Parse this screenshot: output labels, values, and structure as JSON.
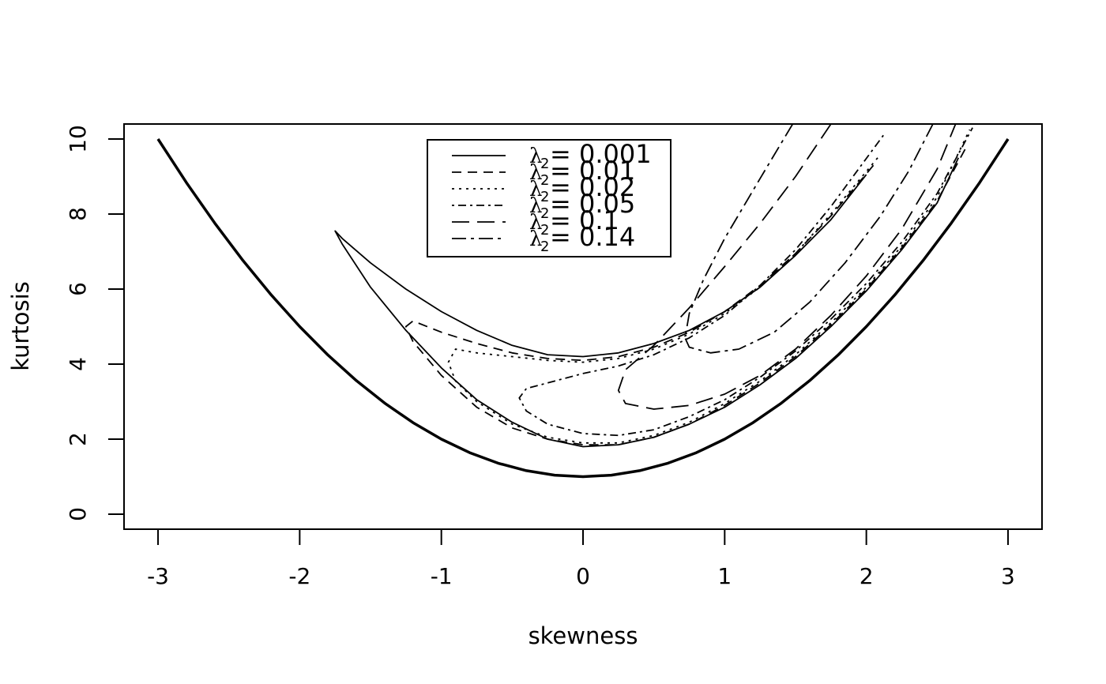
{
  "chart_data": {
    "type": "line",
    "title": "",
    "xlabel": "skewness",
    "ylabel": "kurtosis",
    "xlim": [
      -3.24,
      3.24
    ],
    "ylim": [
      -0.4,
      10.4
    ],
    "x_ticks": [
      -3,
      -2,
      -1,
      0,
      1,
      2,
      3
    ],
    "y_ticks": [
      0,
      2,
      4,
      6,
      8,
      10
    ],
    "x_tick_labels": [
      "-3",
      "-2",
      "-1",
      "0",
      "1",
      "2",
      "3"
    ],
    "y_tick_labels": [
      "0",
      "2",
      "4",
      "6",
      "8",
      "10"
    ],
    "grid": false,
    "legend_placement": "top-center",
    "boundary": {
      "x": [
        -3,
        -2.8,
        -2.6,
        -2.4,
        -2.2,
        -2,
        -1.8,
        -1.6,
        -1.4,
        -1.2,
        -1,
        -0.8,
        -0.6,
        -0.4,
        -0.2,
        0,
        0.2,
        0.4,
        0.6,
        0.8,
        1,
        1.2,
        1.4,
        1.6,
        1.8,
        2,
        2.2,
        2.4,
        2.6,
        2.8,
        3
      ],
      "y": [
        10,
        8.84,
        7.76,
        6.76,
        5.84,
        5,
        4.24,
        3.56,
        2.96,
        2.44,
        2,
        1.64,
        1.36,
        1.16,
        1.04,
        1,
        1.04,
        1.16,
        1.36,
        1.64,
        2,
        2.44,
        2.96,
        3.56,
        4.24,
        5,
        5.84,
        6.76,
        7.76,
        8.84,
        10
      ]
    },
    "series": [
      {
        "label_sym": "λ",
        "label_sub": "2",
        "label_value": "= 0.001",
        "dash": "",
        "x": [
          2.0,
          1.75,
          1.5,
          1.25,
          1.0,
          0.75,
          0.5,
          0.25,
          0.0,
          -0.25,
          -0.5,
          -0.75,
          -1.0,
          -1.25,
          -1.5,
          -1.7,
          -1.75,
          -1.7,
          -1.5,
          -1.25,
          -1.0,
          -0.75,
          -0.5,
          -0.25,
          0.0,
          0.25,
          0.5,
          0.75,
          1.0,
          1.25,
          1.5,
          1.75,
          2.0,
          2.25,
          2.5,
          2.65
        ],
        "y": [
          9.05,
          7.85,
          6.9,
          6.05,
          5.4,
          4.9,
          4.55,
          4.3,
          4.2,
          4.25,
          4.5,
          4.9,
          5.4,
          6.0,
          6.7,
          7.35,
          7.55,
          7.2,
          6.05,
          4.9,
          3.9,
          3.05,
          2.45,
          2.0,
          1.8,
          1.85,
          2.05,
          2.4,
          2.85,
          3.45,
          4.15,
          5.0,
          5.95,
          7.05,
          8.3,
          9.5
        ]
      },
      {
        "label_sym": "λ",
        "label_sub": "2",
        "label_value": "= 0.01",
        "dash": "12 8",
        "x": [
          2.05,
          1.75,
          1.5,
          1.25,
          1.0,
          0.75,
          0.5,
          0.25,
          0.0,
          -0.25,
          -0.5,
          -0.75,
          -1.0,
          -1.2,
          -1.25,
          -1.2,
          -1.0,
          -0.75,
          -0.5,
          -0.25,
          0.0,
          0.25,
          0.5,
          0.75,
          1.0,
          1.25,
          1.5,
          1.75,
          2.0,
          2.25,
          2.5,
          2.7
        ],
        "y": [
          9.3,
          7.95,
          6.95,
          6.1,
          5.4,
          4.85,
          4.45,
          4.2,
          4.1,
          4.15,
          4.3,
          4.55,
          4.85,
          5.15,
          5.0,
          4.6,
          3.7,
          2.85,
          2.3,
          2.0,
          1.85,
          1.85,
          2.05,
          2.4,
          2.9,
          3.5,
          4.2,
          5.05,
          6.0,
          7.1,
          8.35,
          9.75
        ]
      },
      {
        "label_sym": "λ",
        "label_sub": "2",
        "label_value": "= 0.02",
        "dash": "3 6",
        "x": [
          2.08,
          1.75,
          1.5,
          1.25,
          1.0,
          0.75,
          0.5,
          0.25,
          0.0,
          -0.25,
          -0.5,
          -0.75,
          -0.9,
          -0.95,
          -0.9,
          -0.75,
          -0.5,
          -0.25,
          0.0,
          0.25,
          0.5,
          0.75,
          1.0,
          1.25,
          1.5,
          1.75,
          2.0,
          2.25,
          2.5,
          2.73
        ],
        "y": [
          9.5,
          8.0,
          6.95,
          6.05,
          5.35,
          4.8,
          4.4,
          4.15,
          4.05,
          4.1,
          4.2,
          4.3,
          4.4,
          4.05,
          3.55,
          3.0,
          2.4,
          2.05,
          1.9,
          1.9,
          2.1,
          2.45,
          2.95,
          3.55,
          4.25,
          5.1,
          6.05,
          7.15,
          8.45,
          10.25
        ]
      },
      {
        "label_sym": "λ",
        "label_sub": "2",
        "label_value": "= 0.05",
        "dash": "3 5 10 5",
        "x": [
          2.12,
          1.75,
          1.5,
          1.25,
          1.0,
          0.75,
          0.5,
          0.25,
          0.0,
          -0.25,
          -0.4,
          -0.45,
          -0.4,
          -0.25,
          0.0,
          0.25,
          0.5,
          0.75,
          1.0,
          1.25,
          1.5,
          1.75,
          2.0,
          2.25,
          2.5,
          2.75
        ],
        "y": [
          10.1,
          8.2,
          7.05,
          6.1,
          5.3,
          4.7,
          4.25,
          3.95,
          3.75,
          3.5,
          3.35,
          3.1,
          2.75,
          2.4,
          2.15,
          2.1,
          2.25,
          2.6,
          3.05,
          3.65,
          4.35,
          5.2,
          6.15,
          7.25,
          8.55,
          10.3
        ]
      },
      {
        "label_sym": "λ",
        "label_sub": "2",
        "label_value": "= 0.1",
        "dash": "22 10",
        "x": [
          1.75,
          1.5,
          1.25,
          1.0,
          0.75,
          0.5,
          0.3,
          0.25,
          0.3,
          0.5,
          0.75,
          1.0,
          1.25,
          1.5,
          1.75,
          2.0,
          2.25,
          2.5,
          2.63
        ],
        "y": [
          10.4,
          9.0,
          7.75,
          6.6,
          5.5,
          4.5,
          3.85,
          3.3,
          2.95,
          2.8,
          2.9,
          3.2,
          3.7,
          4.4,
          5.3,
          6.35,
          7.6,
          9.2,
          10.4
        ]
      },
      {
        "label_sym": "λ",
        "label_sub": "2",
        "label_value": "= 0.14",
        "dash": "18 6 4 6",
        "x": [
          1.48,
          1.25,
          1.0,
          0.85,
          0.75,
          0.72,
          0.75,
          0.9,
          1.1,
          1.35,
          1.6,
          1.85,
          2.1,
          2.3,
          2.47
        ],
        "y": [
          10.4,
          8.95,
          7.35,
          6.25,
          5.35,
          4.7,
          4.45,
          4.3,
          4.4,
          4.85,
          5.65,
          6.7,
          7.95,
          9.15,
          10.4
        ]
      }
    ]
  }
}
